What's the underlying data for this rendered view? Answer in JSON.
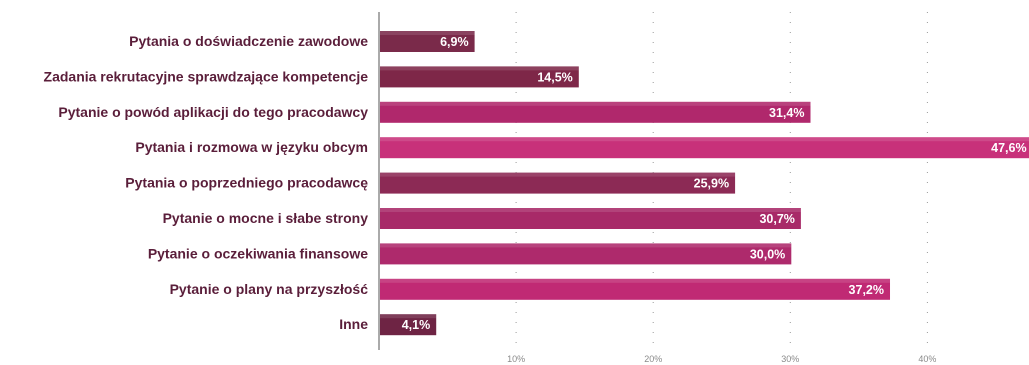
{
  "chart_data": {
    "type": "bar",
    "orientation": "horizontal",
    "categories": [
      "Pytania o doświadczenie zawodowe",
      "Zadania rekrutacyjne sprawdzające kompetencje",
      "Pytanie o powód aplikacji do tego pracodawcy",
      "Pytania i rozmowa w języku obcym",
      "Pytania o poprzedniego pracodawcę",
      "Pytanie o mocne i słabe strony",
      "Pytanie o oczekiwania finansowe",
      "Pytanie o plany na przyszłość",
      "Inne"
    ],
    "values": [
      6.9,
      14.5,
      31.4,
      47.6,
      25.9,
      30.7,
      30.0,
      37.2,
      4.1
    ],
    "value_labels": [
      "6,9%",
      "14,5%",
      "31,4%",
      "47,6%",
      "25,9%",
      "30,7%",
      "30,0%",
      "37,2%",
      "4,1%"
    ],
    "xlim": [
      0,
      47.6
    ],
    "xticks": [
      10,
      20,
      30,
      40
    ],
    "xtick_labels": [
      "10%",
      "20%",
      "30%",
      "40%"
    ],
    "grid": "vertical-dotted",
    "bar_colors": [
      "#7a2a4a",
      "#7e2748",
      "#b0286c",
      "#c8317a",
      "#8c2a55",
      "#a82a68",
      "#ae2a6c",
      "#c02a74",
      "#6e2444"
    ],
    "label_color": "#5a1e3a"
  }
}
